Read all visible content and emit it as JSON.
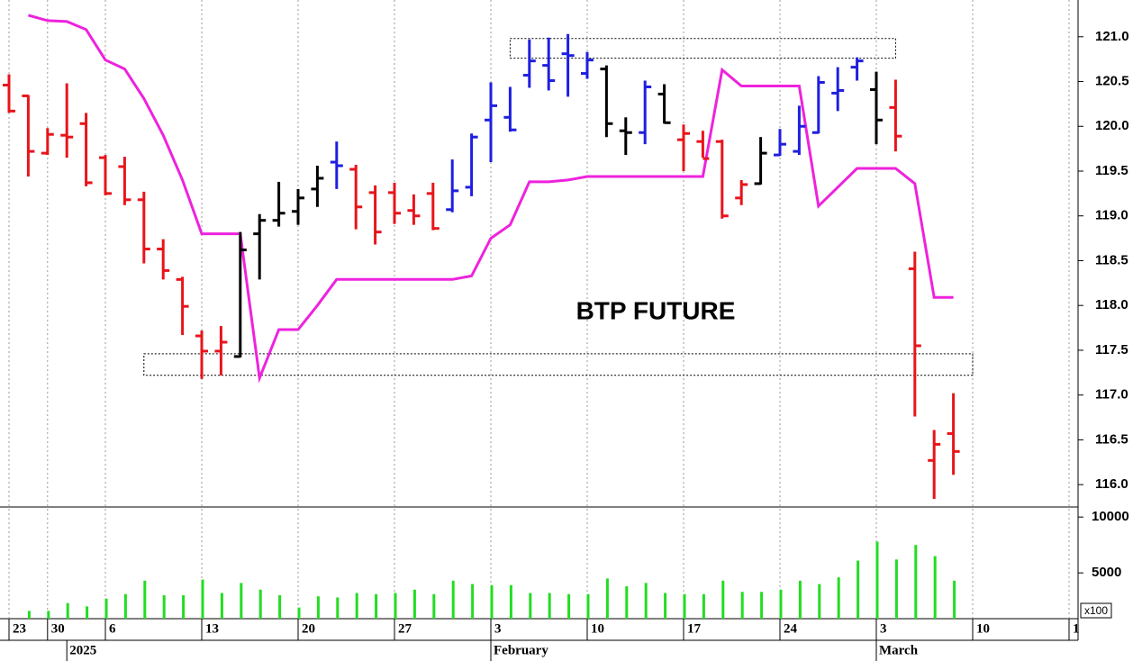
{
  "chart_data": {
    "type": "ohlc",
    "title": "BTP FUTURE",
    "categories": [
      "23",
      null,
      "30",
      null,
      null,
      "6",
      null,
      null,
      null,
      null,
      "13",
      null,
      null,
      null,
      null,
      "20",
      null,
      null,
      null,
      null,
      "27",
      null,
      null,
      null,
      null,
      "3",
      null,
      null,
      null,
      null,
      "10",
      null,
      null,
      null,
      null,
      "17",
      null,
      null,
      null,
      null,
      "24",
      null,
      null,
      null,
      null,
      "3",
      null,
      null,
      null,
      null,
      "10",
      null,
      null,
      null,
      null,
      "1"
    ],
    "month_labels": [
      null,
      null,
      null,
      "2025",
      null,
      null,
      null,
      null,
      null,
      null,
      null,
      null,
      null,
      null,
      null,
      null,
      null,
      null,
      null,
      null,
      null,
      null,
      null,
      null,
      null,
      "February",
      null,
      null,
      null,
      null,
      null,
      null,
      null,
      null,
      null,
      null,
      null,
      null,
      null,
      null,
      null,
      null,
      null,
      null,
      null,
      "March",
      null,
      null,
      null,
      null,
      null,
      null,
      null,
      null,
      null,
      null
    ],
    "open": [
      120.46,
      120.34,
      119.7,
      119.9,
      120.03,
      119.65,
      119.55,
      119.18,
      118.63,
      118.29,
      117.66,
      117.49,
      117.43,
      118.8,
      118.95,
      119.05,
      119.3,
      119.6,
      119.52,
      119.26,
      119.26,
      119.06,
      119.25,
      119.07,
      119.32,
      120.07,
      120.1,
      120.57,
      120.68,
      120.81,
      120.59,
      120.64,
      119.95,
      119.93,
      120.36,
      119.85,
      119.83,
      119.83,
      119.2,
      119.36,
      119.68,
      119.72,
      119.93,
      120.37,
      120.66,
      120.41,
      120.21,
      118.41,
      116.27,
      116.57,
      null,
      null,
      null,
      null,
      null,
      null
    ],
    "high": [
      120.58,
      120.35,
      119.98,
      120.48,
      120.15,
      119.68,
      119.66,
      119.27,
      118.74,
      118.32,
      117.72,
      117.77,
      118.82,
      119.02,
      119.38,
      119.3,
      119.56,
      119.83,
      119.57,
      119.34,
      119.37,
      119.24,
      119.37,
      119.63,
      119.92,
      120.49,
      120.44,
      120.97,
      120.99,
      121.03,
      120.83,
      120.68,
      120.1,
      120.51,
      120.47,
      120.02,
      119.95,
      119.85,
      119.4,
      119.88,
      119.97,
      120.23,
      120.56,
      120.66,
      120.77,
      120.61,
      120.52,
      118.6,
      116.61,
      117.02,
      null,
      null,
      null,
      null,
      null,
      null
    ],
    "low": [
      120.15,
      119.44,
      119.68,
      119.65,
      119.33,
      119.23,
      119.12,
      118.47,
      118.29,
      117.67,
      117.18,
      117.22,
      117.42,
      118.29,
      118.88,
      118.9,
      119.1,
      119.3,
      118.85,
      118.68,
      118.91,
      118.9,
      118.84,
      119.04,
      119.22,
      119.6,
      119.94,
      120.43,
      120.4,
      120.33,
      120.53,
      119.88,
      119.68,
      119.8,
      120.03,
      119.5,
      119.65,
      118.97,
      119.12,
      119.35,
      119.67,
      119.68,
      119.92,
      120.17,
      120.51,
      119.8,
      119.72,
      116.76,
      115.84,
      116.11,
      null,
      null,
      null,
      null,
      null,
      null
    ],
    "close": [
      120.17,
      119.72,
      119.91,
      119.88,
      119.37,
      119.25,
      119.18,
      118.63,
      118.39,
      117.99,
      117.49,
      117.59,
      118.62,
      118.95,
      119.03,
      119.2,
      119.42,
      119.56,
      119.1,
      118.82,
      119.03,
      119.0,
      118.86,
      119.28,
      119.88,
      120.23,
      119.96,
      120.73,
      120.51,
      120.79,
      120.74,
      120.03,
      119.93,
      120.44,
      120.04,
      119.92,
      119.64,
      119.0,
      119.35,
      119.7,
      119.8,
      120.0,
      120.49,
      120.4,
      120.73,
      120.07,
      119.89,
      117.55,
      116.45,
      116.37,
      null,
      null,
      null,
      null,
      null,
      null
    ],
    "bar_colors": [
      "#e8141b",
      "#e8141b",
      "#e8141b",
      "#e8141b",
      "#e8141b",
      "#e8141b",
      "#e8141b",
      "#e8141b",
      "#e8141b",
      "#e8141b",
      "#e8141b",
      "#e8141b",
      "#000000",
      "#000000",
      "#000000",
      "#000000",
      "#000000",
      "#1f1fe0",
      "#e8141b",
      "#e8141b",
      "#e8141b",
      "#e8141b",
      "#e8141b",
      "#1f1fe0",
      "#1f1fe0",
      "#1f1fe0",
      "#1f1fe0",
      "#1f1fe0",
      "#1f1fe0",
      "#1f1fe0",
      "#1f1fe0",
      "#000000",
      "#000000",
      "#1f1fe0",
      "#000000",
      "#e8141b",
      "#e8141b",
      "#e8141b",
      "#e8141b",
      "#000000",
      "#1f1fe0",
      "#1f1fe0",
      "#1f1fe0",
      "#1f1fe0",
      "#1f1fe0",
      "#000000",
      "#e8141b",
      "#e8141b",
      "#e8141b",
      "#e8141b",
      null,
      null,
      null,
      null,
      null,
      null
    ],
    "line": {
      "color": "#ee22dd",
      "values": [
        null,
        121.24,
        121.18,
        121.17,
        121.08,
        120.74,
        120.64,
        120.31,
        119.9,
        119.4,
        118.8,
        118.8,
        118.8,
        117.19,
        117.73,
        117.73,
        118.0,
        118.29,
        118.29,
        118.29,
        118.29,
        118.29,
        118.29,
        118.29,
        118.33,
        118.75,
        118.9,
        119.38,
        119.38,
        119.4,
        119.44,
        119.44,
        119.44,
        119.44,
        119.44,
        119.44,
        119.44,
        120.63,
        120.45,
        120.45,
        120.45,
        120.45,
        119.11,
        119.32,
        119.53,
        119.53,
        119.53,
        119.36,
        118.09,
        118.09,
        null,
        null,
        null,
        null,
        null,
        null
      ]
    },
    "zones": [
      {
        "from": 120.76,
        "to": 120.98,
        "start": 26,
        "end": 46
      },
      {
        "from": 117.22,
        "to": 117.46,
        "start": 7,
        "end": 50
      }
    ],
    "ylim": [
      115.75,
      121.41
    ],
    "yticks": [
      {
        "value": 121,
        "label": "121.0"
      },
      120.5,
      {
        "value": 120,
        "label": "120.0"
      },
      119.5,
      {
        "value": 119,
        "label": "119.0"
      },
      118.5,
      {
        "value": 118,
        "label": "118.0"
      },
      117.5,
      {
        "value": 117,
        "label": "117.0"
      },
      116.5,
      {
        "value": 116,
        "label": "116.0"
      }
    ],
    "volume": {
      "color": "#22dd22",
      "unit_label": "x100",
      "values": [
        null,
        1600,
        1600,
        2300,
        2000,
        2700,
        3100,
        4300,
        3000,
        3000,
        4400,
        3200,
        4100,
        3500,
        3000,
        1900,
        2900,
        2800,
        3200,
        3100,
        3200,
        3500,
        3100,
        4300,
        4000,
        3900,
        3900,
        3200,
        3200,
        3100,
        3100,
        4500,
        3800,
        4100,
        3200,
        3100,
        3100,
        4300,
        3300,
        3300,
        3500,
        4300,
        4000,
        4600,
        6100,
        7800,
        6200,
        7500,
        6500,
        4300,
        null,
        null,
        null,
        null,
        null,
        null
      ],
      "ylim": [
        900,
        10900
      ],
      "yticks": [
        10000,
        5000
      ]
    }
  }
}
